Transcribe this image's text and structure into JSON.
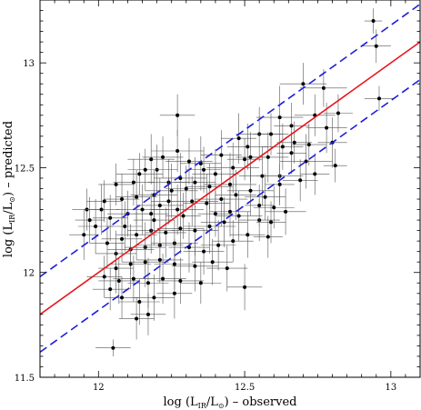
{
  "chart_data": {
    "type": "scatter",
    "xlim": [
      11.8,
      13.1
    ],
    "ylim": [
      11.5,
      13.3
    ],
    "x_ticks": [
      12,
      12.5,
      13
    ],
    "y_ticks": [
      11.5,
      12,
      12.5,
      13
    ],
    "x_tick_labels": [
      "12",
      "12.5",
      "13"
    ],
    "y_tick_labels": [
      "11.5",
      "12",
      "12.5",
      "13"
    ],
    "xlabel": {
      "prefix": "log (L",
      "sub1": "IR",
      "mid": "/L",
      "sub2": "⊙",
      "suffix": ") – observed"
    },
    "ylabel": {
      "prefix": "log (L",
      "sub1": "IR",
      "mid": "/L",
      "sub2": "⊙",
      "suffix": ") – predicted"
    },
    "grid": false,
    "lines": [
      {
        "style": "solid",
        "color": "#e8141c",
        "x": [
          11.8,
          13.1
        ],
        "y": [
          11.8,
          13.1
        ]
      },
      {
        "style": "dashed",
        "color": "#1f1fd8",
        "x": [
          11.8,
          13.1
        ],
        "y": [
          11.98,
          13.28
        ]
      },
      {
        "style": "dashed",
        "color": "#1f1fd8",
        "x": [
          11.8,
          13.1
        ],
        "y": [
          11.62,
          12.92
        ]
      }
    ],
    "points_style": {
      "color": "#000000"
    },
    "points": [
      [
        12.05,
        11.64,
        0.06,
        0.04
      ],
      [
        12.94,
        13.2,
        0.03,
        0.06
      ],
      [
        12.95,
        13.08,
        0.05,
        0.08
      ],
      [
        12.96,
        12.83,
        0.05,
        0.06
      ],
      [
        12.27,
        12.75,
        0.06,
        0.1
      ],
      [
        12.7,
        12.9,
        0.08,
        0.1
      ],
      [
        12.77,
        12.88,
        0.08,
        0.09
      ],
      [
        12.74,
        12.75,
        0.07,
        0.1
      ],
      [
        12.82,
        12.76,
        0.05,
        0.09
      ],
      [
        12.78,
        12.69,
        0.07,
        0.12
      ],
      [
        12.62,
        12.74,
        0.08,
        0.15
      ],
      [
        12.48,
        12.64,
        0.06,
        0.12
      ],
      [
        12.55,
        12.66,
        0.08,
        0.13
      ],
      [
        12.63,
        12.6,
        0.07,
        0.11
      ],
      [
        12.67,
        12.62,
        0.06,
        0.1
      ],
      [
        12.8,
        12.62,
        0.05,
        0.12
      ],
      [
        12.71,
        12.53,
        0.09,
        0.13
      ],
      [
        12.58,
        12.55,
        0.07,
        0.12
      ],
      [
        12.52,
        12.55,
        0.05,
        0.12
      ],
      [
        12.62,
        12.46,
        0.08,
        0.13
      ],
      [
        12.69,
        12.44,
        0.06,
        0.1
      ],
      [
        12.81,
        12.51,
        0.04,
        0.08
      ],
      [
        12.56,
        12.46,
        0.08,
        0.14
      ],
      [
        12.46,
        12.5,
        0.09,
        0.12
      ],
      [
        12.45,
        12.42,
        0.09,
        0.15
      ],
      [
        12.4,
        12.47,
        0.08,
        0.12
      ],
      [
        12.35,
        12.52,
        0.07,
        0.13
      ],
      [
        12.31,
        12.53,
        0.08,
        0.11
      ],
      [
        12.27,
        12.58,
        0.09,
        0.1
      ],
      [
        12.22,
        12.55,
        0.07,
        0.1
      ],
      [
        12.18,
        12.54,
        0.08,
        0.12
      ],
      [
        12.2,
        12.49,
        0.07,
        0.12
      ],
      [
        12.14,
        12.47,
        0.08,
        0.1
      ],
      [
        12.28,
        12.45,
        0.09,
        0.12
      ],
      [
        12.33,
        12.43,
        0.07,
        0.12
      ],
      [
        12.38,
        12.41,
        0.08,
        0.11
      ],
      [
        12.25,
        12.39,
        0.09,
        0.13
      ],
      [
        12.19,
        12.37,
        0.08,
        0.12
      ],
      [
        12.13,
        12.36,
        0.07,
        0.13
      ],
      [
        12.08,
        12.35,
        0.06,
        0.12
      ],
      [
        12.02,
        12.34,
        0.06,
        0.1
      ],
      [
        11.96,
        12.3,
        0.05,
        0.1
      ],
      [
        11.99,
        12.22,
        0.06,
        0.13
      ],
      [
        11.95,
        12.18,
        0.05,
        0.12
      ],
      [
        12.04,
        12.26,
        0.06,
        0.11
      ],
      [
        12.1,
        12.28,
        0.07,
        0.11
      ],
      [
        12.15,
        12.3,
        0.09,
        0.12
      ],
      [
        12.21,
        12.32,
        0.08,
        0.13
      ],
      [
        12.27,
        12.3,
        0.09,
        0.12
      ],
      [
        12.32,
        12.34,
        0.09,
        0.12
      ],
      [
        12.37,
        12.33,
        0.08,
        0.14
      ],
      [
        12.42,
        12.35,
        0.09,
        0.13
      ],
      [
        12.47,
        12.37,
        0.07,
        0.12
      ],
      [
        12.52,
        12.39,
        0.08,
        0.12
      ],
      [
        12.57,
        12.36,
        0.07,
        0.11
      ],
      [
        12.6,
        12.31,
        0.07,
        0.1
      ],
      [
        12.64,
        12.29,
        0.07,
        0.11
      ],
      [
        12.55,
        12.25,
        0.07,
        0.1
      ],
      [
        12.48,
        12.27,
        0.08,
        0.12
      ],
      [
        12.43,
        12.24,
        0.08,
        0.12
      ],
      [
        12.38,
        12.22,
        0.09,
        0.13
      ],
      [
        12.33,
        12.2,
        0.08,
        0.12
      ],
      [
        12.28,
        12.21,
        0.08,
        0.12
      ],
      [
        12.23,
        12.19,
        0.07,
        0.12
      ],
      [
        12.18,
        12.2,
        0.08,
        0.11
      ],
      [
        12.13,
        12.18,
        0.07,
        0.12
      ],
      [
        12.08,
        12.16,
        0.07,
        0.11
      ],
      [
        12.03,
        12.14,
        0.06,
        0.12
      ],
      [
        12.06,
        12.09,
        0.07,
        0.11
      ],
      [
        12.11,
        12.11,
        0.08,
        0.12
      ],
      [
        12.16,
        12.12,
        0.07,
        0.12
      ],
      [
        12.21,
        12.13,
        0.08,
        0.12
      ],
      [
        12.26,
        12.14,
        0.08,
        0.11
      ],
      [
        12.31,
        12.12,
        0.07,
        0.12
      ],
      [
        12.36,
        12.1,
        0.07,
        0.11
      ],
      [
        12.41,
        12.13,
        0.06,
        0.12
      ],
      [
        12.46,
        12.15,
        0.07,
        0.1
      ],
      [
        12.51,
        12.18,
        0.06,
        0.11
      ],
      [
        12.58,
        12.17,
        0.05,
        0.1
      ],
      [
        12.06,
        12.02,
        0.06,
        0.12
      ],
      [
        12.11,
        12.04,
        0.07,
        0.12
      ],
      [
        12.16,
        12.05,
        0.08,
        0.12
      ],
      [
        12.21,
        12.06,
        0.08,
        0.11
      ],
      [
        12.26,
        12.04,
        0.07,
        0.12
      ],
      [
        12.33,
        12.03,
        0.08,
        0.12
      ],
      [
        12.39,
        12.05,
        0.07,
        0.11
      ],
      [
        12.44,
        12.02,
        0.07,
        0.11
      ],
      [
        12.02,
        11.98,
        0.06,
        0.1
      ],
      [
        12.07,
        11.96,
        0.07,
        0.11
      ],
      [
        12.12,
        11.97,
        0.07,
        0.11
      ],
      [
        12.17,
        11.95,
        0.07,
        0.12
      ],
      [
        12.22,
        11.97,
        0.08,
        0.12
      ],
      [
        12.28,
        11.96,
        0.08,
        0.11
      ],
      [
        12.35,
        11.95,
        0.07,
        0.1
      ],
      [
        12.5,
        11.93,
        0.06,
        0.11
      ],
      [
        12.08,
        11.88,
        0.06,
        0.1
      ],
      [
        12.14,
        11.86,
        0.07,
        0.11
      ],
      [
        12.19,
        11.88,
        0.07,
        0.11
      ],
      [
        12.26,
        11.9,
        0.06,
        0.12
      ],
      [
        12.13,
        11.78,
        0.06,
        0.1
      ],
      [
        12.17,
        11.8,
        0.06,
        0.1
      ],
      [
        12.04,
        11.92,
        0.06,
        0.1
      ],
      [
        12.09,
        12.22,
        0.06,
        0.12
      ],
      [
        12.19,
        12.25,
        0.07,
        0.12
      ],
      [
        12.29,
        12.27,
        0.06,
        0.11
      ],
      [
        12.4,
        12.28,
        0.06,
        0.11
      ],
      [
        12.45,
        12.29,
        0.07,
        0.12
      ],
      [
        12.3,
        12.4,
        0.07,
        0.11
      ],
      [
        12.24,
        12.43,
        0.07,
        0.11
      ],
      [
        12.12,
        12.43,
        0.07,
        0.11
      ],
      [
        12.06,
        12.42,
        0.06,
        0.1
      ],
      [
        12.16,
        12.49,
        0.06,
        0.1
      ],
      [
        12.36,
        12.49,
        0.06,
        0.11
      ],
      [
        12.42,
        12.56,
        0.07,
        0.12
      ],
      [
        12.51,
        12.6,
        0.07,
        0.11
      ],
      [
        12.59,
        12.66,
        0.06,
        0.1
      ],
      [
        12.66,
        12.7,
        0.06,
        0.11
      ],
      [
        12.72,
        12.61,
        0.06,
        0.1
      ],
      [
        12.5,
        12.54,
        0.06,
        0.1
      ],
      [
        12.66,
        12.57,
        0.05,
        0.1
      ],
      [
        12.74,
        12.47,
        0.05,
        0.1
      ],
      [
        12.62,
        12.42,
        0.05,
        0.1
      ],
      [
        12.55,
        12.32,
        0.05,
        0.1
      ],
      [
        12.59,
        12.24,
        0.05,
        0.1
      ],
      [
        12.24,
        12.34,
        0.06,
        0.11
      ],
      [
        12.18,
        12.28,
        0.06,
        0.1
      ],
      [
        12.01,
        12.3,
        0.06,
        0.12
      ],
      [
        11.97,
        12.25,
        0.05,
        0.11
      ]
    ]
  }
}
